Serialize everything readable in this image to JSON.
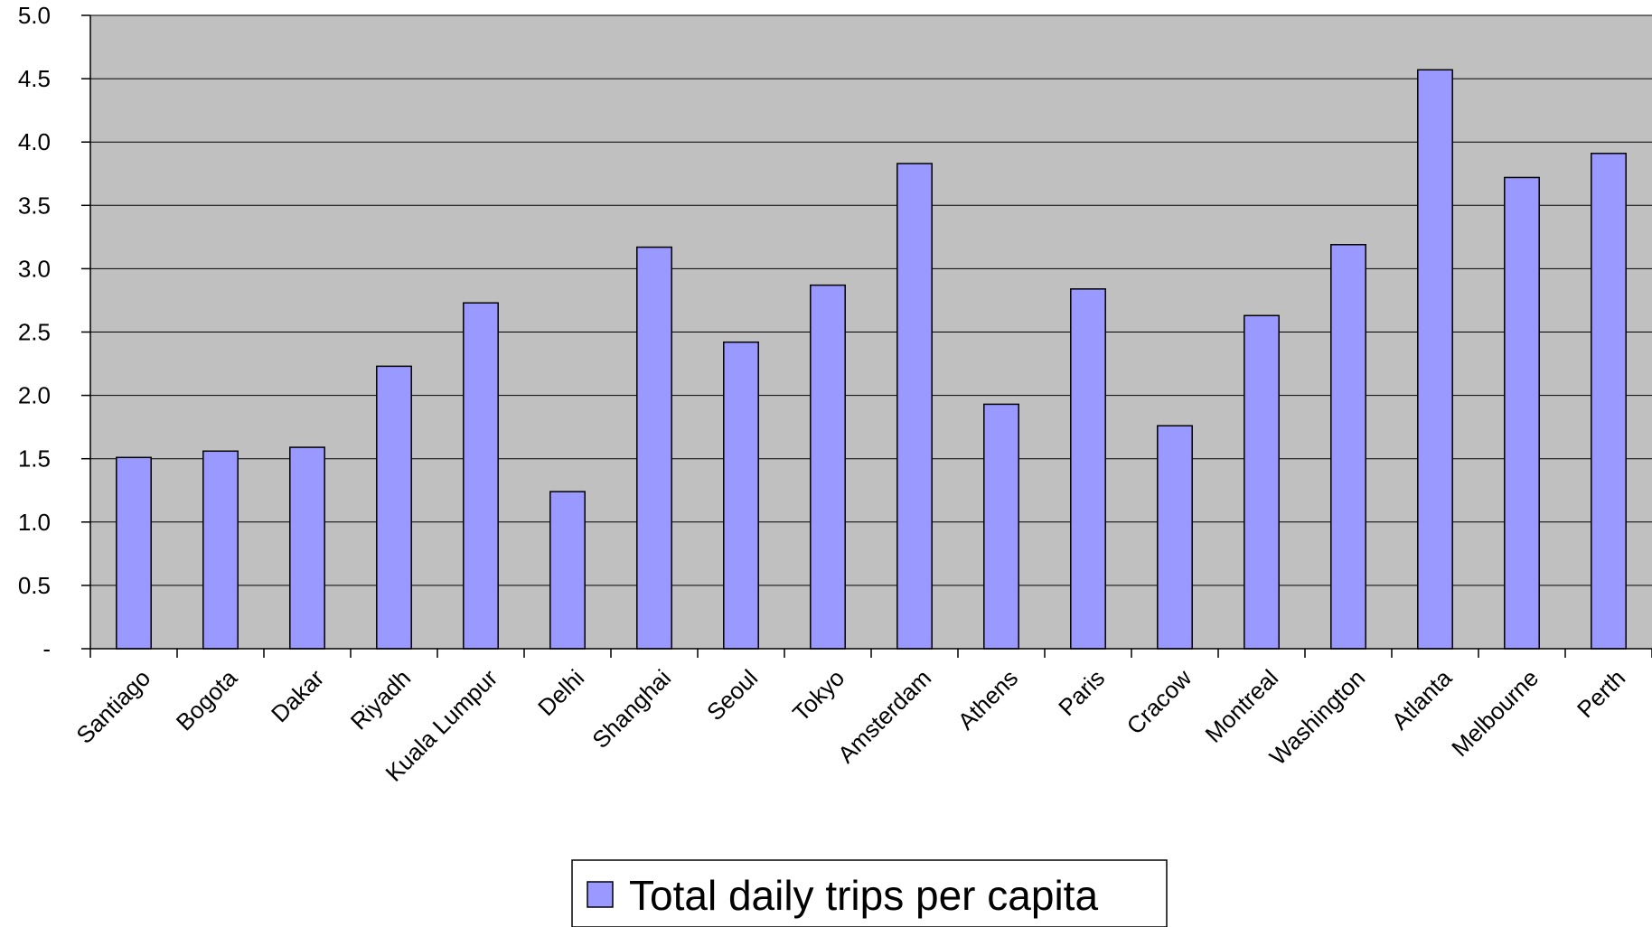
{
  "chart_data": {
    "type": "bar",
    "categories": [
      "Santiago",
      "Bogota",
      "Dakar",
      "Riyadh",
      "Kuala Lumpur",
      "Delhi",
      "Shanghai",
      "Seoul",
      "Tokyo",
      "Amsterdam",
      "Athens",
      "Paris",
      "Cracow",
      "Montreal",
      "Washington",
      "Atlanta",
      "Melbourne",
      "Perth"
    ],
    "series": [
      {
        "name": "Total daily trips per capita",
        "values": [
          1.51,
          1.56,
          1.59,
          2.23,
          2.73,
          1.24,
          3.17,
          2.42,
          2.87,
          3.83,
          1.93,
          2.84,
          1.76,
          2.63,
          3.19,
          4.57,
          3.72,
          3.91
        ],
        "color": "#9999ff"
      }
    ],
    "yticks": [
      "-",
      "0.5",
      "1.0",
      "1.5",
      "2.0",
      "2.5",
      "3.0",
      "3.5",
      "4.0",
      "4.5",
      "5.0"
    ],
    "ylim": [
      0,
      5
    ],
    "title": "",
    "xlabel": "",
    "ylabel": "",
    "grid": true,
    "legend": "bottom-center",
    "plot_background": "#c0c0c0",
    "bar_outline": "#000000"
  }
}
